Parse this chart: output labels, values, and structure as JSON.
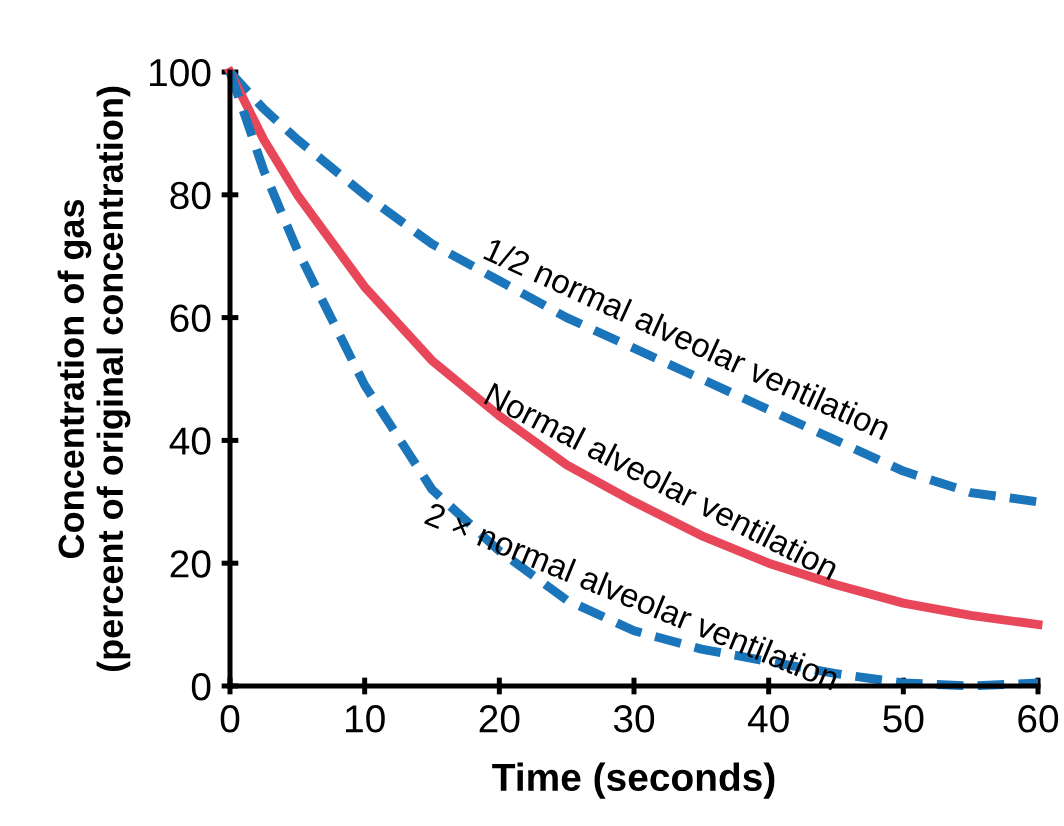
{
  "chart_data": {
    "type": "line",
    "xlabel": "Time (seconds)",
    "ylabel": "Concentration of gas\n(percent of original concentration)",
    "xlim": [
      0,
      60
    ],
    "ylim": [
      0,
      100
    ],
    "xticks": [
      0,
      10,
      20,
      30,
      40,
      50,
      60
    ],
    "yticks": [
      0,
      20,
      40,
      60,
      80,
      100
    ],
    "grid": false,
    "legend": false,
    "marker": "none",
    "series": [
      {
        "name": "1/2 normal alveolar ventilation",
        "color": "#1a75bb",
        "line_style": "dashed",
        "x": [
          0,
          2.5,
          5,
          10,
          15,
          20,
          25,
          30,
          35,
          40,
          45,
          50,
          55,
          60
        ],
        "values": [
          100,
          94,
          89,
          80,
          72,
          66,
          60,
          55,
          50,
          45,
          40,
          35,
          31.5,
          30
        ]
      },
      {
        "name": "Normal alveolar ventilation",
        "color": "#e8475a",
        "line_style": "solid",
        "x": [
          0,
          2.5,
          5,
          10,
          15,
          20,
          25,
          30,
          35,
          40,
          45,
          50,
          55,
          60
        ],
        "values": [
          100,
          89,
          80,
          65,
          53,
          44,
          36,
          30,
          24.5,
          20,
          16.5,
          13.5,
          11.5,
          10
        ]
      },
      {
        "name": "2 × normal alveolar ventilation",
        "color": "#1a75bb",
        "line_style": "dashed",
        "x": [
          0,
          2.5,
          5,
          10,
          15,
          20,
          25,
          30,
          35,
          40,
          45,
          50,
          55,
          60
        ],
        "values": [
          100,
          84,
          71,
          49,
          32,
          22,
          14,
          9,
          6,
          4,
          2,
          0.5,
          0,
          0.5
        ]
      }
    ]
  }
}
